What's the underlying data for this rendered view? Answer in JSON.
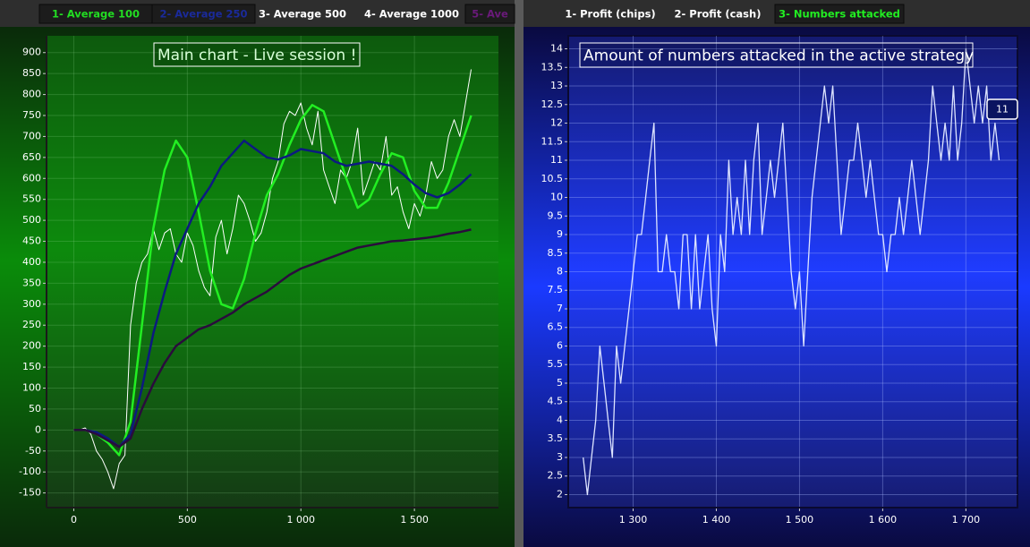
{
  "chart_data": [
    {
      "type": "line",
      "title": "Main chart - Live session !",
      "tabs": [
        {
          "label": "1- Average 100",
          "color": "#22dd22",
          "boxed": true
        },
        {
          "label": "2- Average 250",
          "color": "#1a2a9a",
          "boxed": true
        },
        {
          "label": "3- Average 500",
          "color": "#ffffff",
          "boxed": false
        },
        {
          "label": "4- Average 1000",
          "color": "#ffffff",
          "boxed": false
        },
        {
          "label": "5- Ave",
          "color": "#6a1a7a",
          "boxed": true
        }
      ],
      "xlim": [
        -120,
        1870
      ],
      "ylim": [
        -185,
        940
      ],
      "xticks": [
        0,
        500,
        {
          "value": 1000,
          "label": "1 000"
        },
        {
          "value": 1500,
          "label": "1 500"
        }
      ],
      "yticks": [
        -150,
        -100,
        -50,
        0,
        50,
        100,
        150,
        200,
        250,
        300,
        350,
        400,
        450,
        500,
        550,
        600,
        650,
        700,
        750,
        800,
        850,
        900
      ],
      "grid": true,
      "series": [
        {
          "color": "#ffffff",
          "width": 1,
          "x": [
            0,
            25,
            50,
            75,
            100,
            125,
            150,
            175,
            200,
            225,
            250,
            275,
            300,
            325,
            350,
            375,
            400,
            425,
            450,
            475,
            500,
            525,
            550,
            575,
            600,
            625,
            650,
            675,
            700,
            725,
            750,
            775,
            800,
            825,
            850,
            875,
            900,
            925,
            950,
            975,
            1000,
            1025,
            1050,
            1075,
            1100,
            1125,
            1150,
            1175,
            1200,
            1225,
            1250,
            1275,
            1300,
            1325,
            1350,
            1375,
            1400,
            1425,
            1450,
            1475,
            1500,
            1525,
            1550,
            1575,
            1600,
            1625,
            1650,
            1675,
            1700,
            1725,
            1750
          ],
          "values": [
            0,
            0,
            5,
            -10,
            -50,
            -70,
            -100,
            -140,
            -80,
            -60,
            250,
            350,
            400,
            420,
            480,
            430,
            470,
            480,
            420,
            400,
            470,
            440,
            380,
            340,
            320,
            460,
            500,
            420,
            480,
            560,
            540,
            500,
            450,
            470,
            520,
            600,
            640,
            730,
            760,
            750,
            780,
            720,
            680,
            760,
            620,
            580,
            540,
            620,
            600,
            640,
            720,
            560,
            600,
            640,
            620,
            700,
            560,
            580,
            520,
            480,
            540,
            510,
            560,
            640,
            600,
            620,
            700,
            740,
            700,
            780,
            860
          ]
        },
        {
          "color": "#22ee22",
          "width": 2.5,
          "x": [
            0,
            50,
            100,
            150,
            200,
            250,
            300,
            350,
            400,
            450,
            500,
            550,
            600,
            650,
            700,
            750,
            800,
            850,
            900,
            950,
            1000,
            1050,
            1100,
            1150,
            1200,
            1250,
            1300,
            1350,
            1400,
            1450,
            1500,
            1550,
            1600,
            1650,
            1700,
            1750
          ],
          "values": [
            0,
            0,
            -10,
            -30,
            -60,
            20,
            250,
            480,
            620,
            690,
            650,
            520,
            380,
            300,
            290,
            360,
            470,
            560,
            610,
            680,
            740,
            775,
            760,
            680,
            600,
            530,
            550,
            610,
            660,
            650,
            570,
            530,
            530,
            590,
            670,
            750
          ]
        },
        {
          "color": "#0c1a80",
          "width": 2.5,
          "x": [
            0,
            50,
            100,
            150,
            200,
            250,
            300,
            350,
            400,
            450,
            500,
            550,
            600,
            650,
            700,
            750,
            800,
            850,
            900,
            950,
            1000,
            1050,
            1100,
            1150,
            1200,
            1250,
            1300,
            1350,
            1400,
            1450,
            1500,
            1550,
            1600,
            1650,
            1700,
            1750
          ],
          "values": [
            0,
            0,
            -5,
            -20,
            -40,
            -10,
            100,
            230,
            330,
            420,
            480,
            540,
            580,
            630,
            660,
            690,
            670,
            650,
            645,
            655,
            670,
            665,
            660,
            640,
            630,
            635,
            640,
            635,
            630,
            610,
            585,
            565,
            555,
            565,
            585,
            610
          ]
        },
        {
          "color": "#2a0c3c",
          "width": 2.5,
          "x": [
            0,
            50,
            100,
            150,
            200,
            250,
            300,
            350,
            400,
            450,
            500,
            550,
            600,
            650,
            700,
            750,
            800,
            850,
            900,
            950,
            1000,
            1050,
            1100,
            1150,
            1200,
            1250,
            1300,
            1350,
            1400,
            1450,
            1500,
            1550,
            1600,
            1650,
            1700,
            1750
          ],
          "values": [
            0,
            0,
            -10,
            -25,
            -40,
            -20,
            50,
            110,
            160,
            200,
            220,
            240,
            250,
            265,
            280,
            300,
            315,
            330,
            350,
            370,
            385,
            395,
            405,
            415,
            425,
            435,
            440,
            445,
            450,
            452,
            455,
            458,
            462,
            468,
            472,
            478
          ]
        }
      ]
    },
    {
      "type": "line",
      "title": "Amount of numbers attacked in the active strategy",
      "tabs": [
        {
          "label": "1- Profit (chips)",
          "color": "#ffffff",
          "boxed": false
        },
        {
          "label": "2- Profit (cash)",
          "color": "#ffffff",
          "boxed": false
        },
        {
          "label": "3- Numbers attacked",
          "color": "#22ee22",
          "boxed": true
        }
      ],
      "xlim": [
        1222,
        1762
      ],
      "ylim": [
        1.65,
        14.35
      ],
      "xticks": [
        {
          "value": 1300,
          "label": "1 300"
        },
        {
          "value": 1400,
          "label": "1 400"
        },
        {
          "value": 1500,
          "label": "1 500"
        },
        {
          "value": 1600,
          "label": "1 600"
        },
        {
          "value": 1700,
          "label": "1 700"
        }
      ],
      "yticks": [
        2,
        2.5,
        3,
        3.5,
        4,
        4.5,
        5,
        5.5,
        6,
        6.5,
        7,
        7.5,
        8,
        8.5,
        9,
        9.5,
        10,
        10.5,
        11,
        11.5,
        12,
        12.5,
        13,
        13.5,
        14
      ],
      "grid": true,
      "end_label": 11,
      "series": [
        {
          "color": "#dde4ff",
          "width": 1.3,
          "x": [
            1240,
            1245,
            1250,
            1255,
            1260,
            1265,
            1270,
            1275,
            1280,
            1285,
            1290,
            1295,
            1300,
            1305,
            1310,
            1315,
            1320,
            1325,
            1330,
            1335,
            1340,
            1345,
            1350,
            1355,
            1360,
            1365,
            1370,
            1375,
            1380,
            1385,
            1390,
            1395,
            1400,
            1405,
            1410,
            1415,
            1420,
            1425,
            1430,
            1435,
            1440,
            1445,
            1450,
            1455,
            1460,
            1465,
            1470,
            1475,
            1480,
            1485,
            1490,
            1495,
            1500,
            1505,
            1510,
            1515,
            1520,
            1525,
            1530,
            1535,
            1540,
            1545,
            1550,
            1555,
            1560,
            1565,
            1570,
            1575,
            1580,
            1585,
            1590,
            1595,
            1600,
            1605,
            1610,
            1615,
            1620,
            1625,
            1630,
            1635,
            1640,
            1645,
            1650,
            1655,
            1660,
            1665,
            1670,
            1675,
            1680,
            1685,
            1690,
            1695,
            1700,
            1705,
            1710,
            1715,
            1720,
            1725,
            1730,
            1735,
            1740
          ],
          "values": [
            3,
            2,
            3,
            4,
            6,
            5,
            4,
            3,
            6,
            5,
            6,
            7,
            8,
            9,
            9,
            10,
            11,
            12,
            8,
            8,
            9,
            8,
            8,
            7,
            9,
            9,
            7,
            9,
            7,
            8,
            9,
            7,
            6,
            9,
            8,
            11,
            9,
            10,
            9,
            11,
            9,
            11,
            12,
            9,
            10,
            11,
            10,
            11,
            12,
            10,
            8,
            7,
            8,
            6,
            8,
            10,
            11,
            12,
            13,
            12,
            13,
            11,
            9,
            10,
            11,
            11,
            12,
            11,
            10,
            11,
            10,
            9,
            9,
            8,
            9,
            9,
            10,
            9,
            10,
            11,
            10,
            9,
            10,
            11,
            13,
            12,
            11,
            12,
            11,
            13,
            11,
            12,
            14,
            13,
            12,
            13,
            12,
            13,
            11,
            12,
            11
          ]
        }
      ]
    }
  ]
}
